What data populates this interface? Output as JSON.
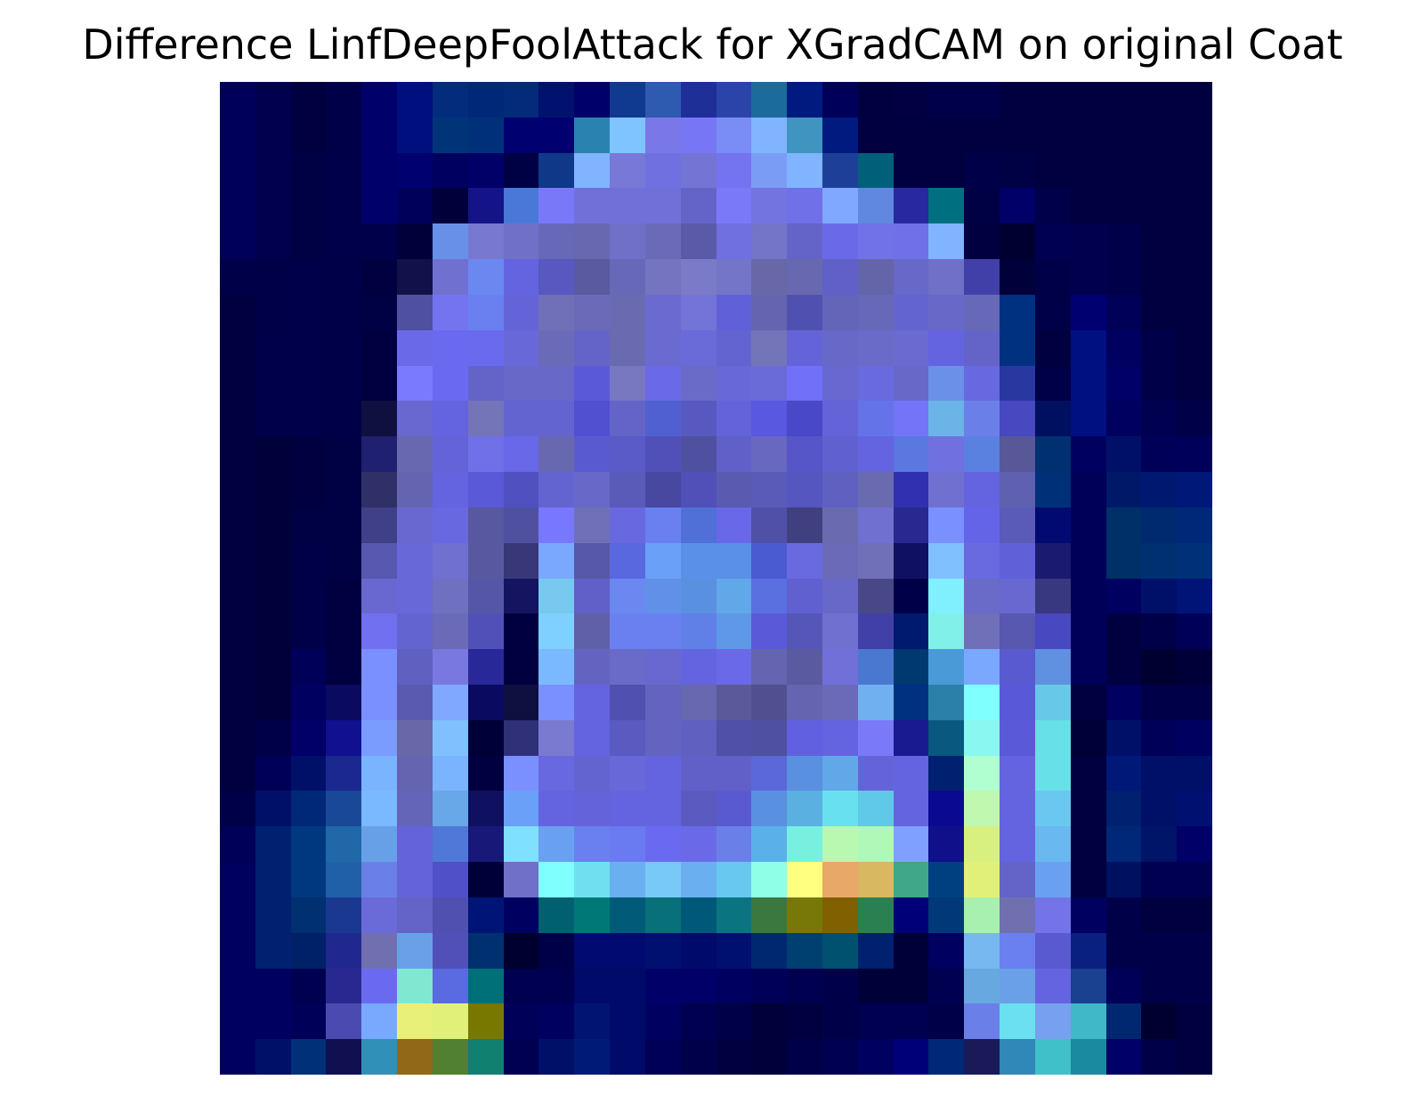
{
  "figure": {
    "title": "Difference LinfDeepFoolAttack for XGradCAM on original Coat"
  },
  "heatmap": {
    "rows": 28,
    "cols": 28,
    "colormap": "jet-overlay-on-grayscale",
    "pixels": [
      [
        "#00005a",
        "#00004f",
        "#000040",
        "#000048",
        "#00006a",
        "#000f7e",
        "#042c7d",
        "#002878",
        "#042a7a",
        "#00126e",
        "#00006a",
        "#0f3a8f",
        "#2e5ab0",
        "#1e2f98",
        "#2a44aa",
        "#1b6b9c",
        "#001a80",
        "#00005a",
        "#000040",
        "#000042",
        "#00004a",
        "#00004a",
        "#000040",
        "#000040",
        "#000040",
        "#000040",
        "#000040",
        "#000040"
      ],
      [
        "#00005a",
        "#00004f",
        "#000040",
        "#000048",
        "#00006a",
        "#000f7e",
        "#003479",
        "#00307a",
        "#000070",
        "#000070",
        "#2a82b0",
        "#80c4ff",
        "#7a78e8",
        "#7777f5",
        "#7a8cf5",
        "#80b4ff",
        "#3f95c0",
        "#001a80",
        "#000040",
        "#000040",
        "#000040",
        "#000040",
        "#000040",
        "#000040",
        "#000040",
        "#000040",
        "#000040",
        "#000040"
      ],
      [
        "#00005a",
        "#00004f",
        "#000045",
        "#00004a",
        "#00006a",
        "#000070",
        "#000060",
        "#000068",
        "#000045",
        "#103888",
        "#80b4ff",
        "#7878d8",
        "#7070e0",
        "#7474d5",
        "#7474f0",
        "#7a9cf5",
        "#80b4ff",
        "#1e3f98",
        "#00607a",
        "#000040",
        "#000040",
        "#000048",
        "#000045",
        "#000040",
        "#000040",
        "#000040",
        "#000040",
        "#000040"
      ],
      [
        "#00005a",
        "#00004f",
        "#000045",
        "#00004a",
        "#00006a",
        "#00005a",
        "#00003a",
        "#141488",
        "#4a78d8",
        "#7878f8",
        "#7070d8",
        "#7070d8",
        "#7070d8",
        "#6464c8",
        "#7a7af8",
        "#7474e0",
        "#7070e8",
        "#80a8ff",
        "#6088e0",
        "#2828a0",
        "#007080",
        "#000045",
        "#000068",
        "#00004a",
        "#000040",
        "#000040",
        "#000040",
        "#000040"
      ],
      [
        "#00005a",
        "#00004f",
        "#000045",
        "#00004a",
        "#00004a",
        "#00003a",
        "#6890e8",
        "#7878d0",
        "#7070c8",
        "#6868b8",
        "#6868b0",
        "#7070c8",
        "#6a6ab8",
        "#5a5aa8",
        "#7070e0",
        "#7474c8",
        "#6464c8",
        "#6a6ae8",
        "#7272e8",
        "#7070e8",
        "#80b4ff",
        "#000040",
        "#000030",
        "#000050",
        "#00004f",
        "#00004a",
        "#000040",
        "#000040"
      ],
      [
        "#000048",
        "#000048",
        "#00004a",
        "#000048",
        "#000040",
        "#12124a",
        "#7070d0",
        "#6a88f0",
        "#6464e0",
        "#5858c0",
        "#5a5aa0",
        "#6868b8",
        "#7474c0",
        "#7a7ac8",
        "#7474c8",
        "#6868a8",
        "#6868b0",
        "#6060c8",
        "#6464a8",
        "#6868c8",
        "#7070c8",
        "#4040a8",
        "#00003a",
        "#000048",
        "#00004f",
        "#00004a",
        "#000040",
        "#000040"
      ],
      [
        "#000040",
        "#000048",
        "#00004a",
        "#000048",
        "#000045",
        "#5050a0",
        "#7474f0",
        "#6a80f0",
        "#6464d8",
        "#7070b8",
        "#6a6ab8",
        "#6a6ab0",
        "#6a6ad0",
        "#7474d8",
        "#6060d8",
        "#6464b0",
        "#5050b0",
        "#6464b8",
        "#6868b8",
        "#6464d0",
        "#6868c8",
        "#6868b8",
        "#003080",
        "#000048",
        "#000070",
        "#000058",
        "#000040",
        "#000040"
      ],
      [
        "#000040",
        "#00004a",
        "#00004a",
        "#000048",
        "#000040",
        "#6a6ae8",
        "#6a6af0",
        "#6a6aee",
        "#6868d8",
        "#6a6ab8",
        "#6464c8",
        "#6a6ab0",
        "#6a6ad0",
        "#6a6ad8",
        "#6464d0",
        "#7474b8",
        "#6464d8",
        "#6868c8",
        "#6a6ac8",
        "#6a6ad0",
        "#6464e0",
        "#6464c8",
        "#003080",
        "#000040",
        "#001080",
        "#000060",
        "#000048",
        "#000040"
      ],
      [
        "#000040",
        "#00004a",
        "#00004a",
        "#000048",
        "#000040",
        "#7a7aff",
        "#6a6af0",
        "#6464c8",
        "#6868c8",
        "#6868c8",
        "#5a5ad8",
        "#7878c0",
        "#6a6ae8",
        "#6a6ac8",
        "#6868d8",
        "#6a6ad8",
        "#7070f8",
        "#6868d0",
        "#6a6ae0",
        "#6868c8",
        "#6a90e8",
        "#6868e0",
        "#2838a0",
        "#000048",
        "#001080",
        "#000068",
        "#000048",
        "#000040"
      ],
      [
        "#000040",
        "#00004a",
        "#00004a",
        "#000048",
        "#101040",
        "#6868d0",
        "#6464e0",
        "#7474b8",
        "#6464d0",
        "#6464d0",
        "#5050d0",
        "#6464c8",
        "#5060d0",
        "#5858c0",
        "#6464d8",
        "#5858e0",
        "#4848c8",
        "#6464d8",
        "#6474e8",
        "#7474f8",
        "#6ab4e8",
        "#6a80e8",
        "#4848c0",
        "#001060",
        "#001080",
        "#000060",
        "#000050",
        "#000048"
      ],
      [
        "#000040",
        "#00003a",
        "#000040",
        "#000045",
        "#202070",
        "#6868b0",
        "#6464d8",
        "#7070e8",
        "#6868e8",
        "#6868b0",
        "#5a5ad0",
        "#5a5ac8",
        "#5050b8",
        "#5050a0",
        "#6060c8",
        "#6868c0",
        "#5656c8",
        "#6060d0",
        "#6464e0",
        "#5a78e0",
        "#7070e0",
        "#5a80e0",
        "#585898",
        "#003070",
        "#000060",
        "#001068",
        "#000058",
        "#00005a"
      ],
      [
        "#000040",
        "#00003a",
        "#000040",
        "#000045",
        "#303068",
        "#6464b0",
        "#6464e0",
        "#5a5ad8",
        "#5050c0",
        "#6464d0",
        "#6868c8",
        "#5a5ab8",
        "#4848a0",
        "#5050b8",
        "#5a5ab0",
        "#5a5ab8",
        "#5656c0",
        "#6060c0",
        "#6a6ab0",
        "#3030b0",
        "#7070d0",
        "#6464e0",
        "#6060b0",
        "#003078",
        "#000058",
        "#001868",
        "#001870",
        "#001878"
      ],
      [
        "#000040",
        "#00003a",
        "#000045",
        "#000045",
        "#404088",
        "#6868d0",
        "#6868e0",
        "#5858a0",
        "#5050a0",
        "#7878ff",
        "#7070b8",
        "#6868e0",
        "#6a80f0",
        "#5070d8",
        "#6868e8",
        "#5050a8",
        "#404080",
        "#6a6ab0",
        "#7070d0",
        "#282890",
        "#7a90ff",
        "#6464e8",
        "#5a5ab8",
        "#000a70",
        "#000058",
        "#003068",
        "#002a70",
        "#002878"
      ],
      [
        "#000040",
        "#00003a",
        "#000048",
        "#000045",
        "#5858b0",
        "#6868d8",
        "#7070d0",
        "#5858a0",
        "#383878",
        "#7aa8ff",
        "#5858a8",
        "#5a68e0",
        "#6aa0f8",
        "#5a90e8",
        "#5a90e8",
        "#4a5ad0",
        "#6a6ae0",
        "#6a6ab8",
        "#7070b8",
        "#101060",
        "#80c0ff",
        "#6a6ae0",
        "#6060d8",
        "#1a1a70",
        "#000058",
        "#003068",
        "#003070",
        "#003078"
      ],
      [
        "#000040",
        "#00003a",
        "#000048",
        "#000040",
        "#6868d0",
        "#6868d8",
        "#7070c0",
        "#5656a8",
        "#141460",
        "#78c8f0",
        "#6060c8",
        "#6a88f0",
        "#6090e8",
        "#5a90e0",
        "#60a8e8",
        "#5a70e0",
        "#6060d0",
        "#6868c8",
        "#484888",
        "#000048",
        "#80f0ff",
        "#6a6ac8",
        "#6868d0",
        "#383880",
        "#000058",
        "#000060",
        "#001068",
        "#001478"
      ],
      [
        "#000040",
        "#00003a",
        "#000048",
        "#000040",
        "#7070f0",
        "#6464d0",
        "#6a6ab8",
        "#5050b8",
        "#000040",
        "#80d0ff",
        "#6060a8",
        "#6a80f0",
        "#6a80f0",
        "#6080e8",
        "#6098e8",
        "#5a5ad8",
        "#5656b8",
        "#7070d0",
        "#4040a8",
        "#001a70",
        "#80f0e8",
        "#7070b8",
        "#5858b0",
        "#4848c0",
        "#000058",
        "#000040",
        "#000048",
        "#000058"
      ],
      [
        "#000040",
        "#00003a",
        "#000058",
        "#000040",
        "#7a90ff",
        "#6060c0",
        "#7878e0",
        "#282898",
        "#000040",
        "#7ab8ff",
        "#6464c0",
        "#6a6ac8",
        "#6868d0",
        "#6464e0",
        "#6a6ae8",
        "#6464b0",
        "#5a5aa0",
        "#7070d8",
        "#4a78d0",
        "#003870",
        "#4a9ad8",
        "#7aa8ff",
        "#5a5ad0",
        "#6090e0",
        "#000058",
        "#000040",
        "#000030",
        "#000038"
      ],
      [
        "#000040",
        "#00003a",
        "#000060",
        "#0a0a60",
        "#7a90ff",
        "#5a5ab0",
        "#80a8ff",
        "#0a0a60",
        "#101040",
        "#7a90ff",
        "#6464e0",
        "#5050b0",
        "#6464c0",
        "#6868b0",
        "#5a5a98",
        "#505090",
        "#6464b0",
        "#6a6ab8",
        "#70b0f0",
        "#003080",
        "#2a80a8",
        "#80ffff",
        "#5858d8",
        "#68c8e8",
        "#000040",
        "#000060",
        "#000048",
        "#000048"
      ],
      [
        "#000040",
        "#000048",
        "#000068",
        "#101090",
        "#7a9cff",
        "#6868a8",
        "#80c0ff",
        "#000038",
        "#303078",
        "#7a7ad0",
        "#6464e0",
        "#5a5ac0",
        "#6464c0",
        "#6060c0",
        "#5050a8",
        "#5050a0",
        "#6060e0",
        "#6464e0",
        "#7a7af8",
        "#1a1a90",
        "#085880",
        "#8af8f0",
        "#5a5ad8",
        "#68e0e8",
        "#000038",
        "#001068",
        "#000058",
        "#000060"
      ],
      [
        "#000040",
        "#000058",
        "#001068",
        "#1a2890",
        "#7ab4ff",
        "#6464b0",
        "#7ab4ff",
        "#000040",
        "#7a90ff",
        "#6868e0",
        "#6464d0",
        "#6868d8",
        "#6464e0",
        "#6060c8",
        "#6060c8",
        "#5a68d8",
        "#5a90e0",
        "#60a8e8",
        "#6464d8",
        "#6464e0",
        "#002070",
        "#b0ffd0",
        "#6464e0",
        "#68e0e8",
        "#000040",
        "#001878",
        "#001068",
        "#001068"
      ],
      [
        "#000048",
        "#001068",
        "#002878",
        "#1a4898",
        "#7ab8ff",
        "#6464b8",
        "#68a8e8",
        "#101060",
        "#6aa0f8",
        "#6464e0",
        "#6464d8",
        "#6464e0",
        "#6464e0",
        "#5a5ac0",
        "#5a5ad0",
        "#5a90e0",
        "#5ab0e0",
        "#68e0f0",
        "#60c8e8",
        "#6464e0",
        "#0a0a90",
        "#c0f8b0",
        "#6464e0",
        "#6ac8f0",
        "#000040",
        "#002070",
        "#001068",
        "#001070"
      ],
      [
        "#000058",
        "#002070",
        "#003880",
        "#2068a8",
        "#68a0e8",
        "#6464d8",
        "#5078d8",
        "#181878",
        "#80e0ff",
        "#6aa0f0",
        "#6a80f0",
        "#6a7af0",
        "#6a6af0",
        "#6a6ae8",
        "#6a80e8",
        "#5ab0e8",
        "#78f0e0",
        "#b8f8b0",
        "#b0f8b8",
        "#80a0ff",
        "#10108a",
        "#d8f080",
        "#6464e0",
        "#6ab8f0",
        "#000040",
        "#002878",
        "#001468",
        "#000068"
      ],
      [
        "#000060",
        "#002070",
        "#003880",
        "#2060a8",
        "#6a80e8",
        "#6464d8",
        "#5050c8",
        "#000038",
        "#7070c8",
        "#80ffff",
        "#70e0f0",
        "#6ab0f0",
        "#78c8f8",
        "#6ab0f0",
        "#68c8f0",
        "#90ffe8",
        "#ffff80",
        "#e8a868",
        "#d8b860",
        "#40a888",
        "#004080",
        "#e0f078",
        "#6464c8",
        "#6aa0f0",
        "#000040",
        "#001060",
        "#000050",
        "#000050"
      ],
      [
        "#000060",
        "#002070",
        "#003070",
        "#1a3890",
        "#6a6ad8",
        "#6464c8",
        "#5050b0",
        "#001478",
        "#000060",
        "#006070",
        "#007878",
        "#005a78",
        "#087078",
        "#005878",
        "#0a7480",
        "#3a7840",
        "#787808",
        "#806000",
        "#2a8050",
        "#000078",
        "#003878",
        "#a8f0b0",
        "#7070b0",
        "#7474e8",
        "#000060",
        "#000048",
        "#000040",
        "#000040"
      ],
      [
        "#000060",
        "#002070",
        "#002068",
        "#202890",
        "#7070b0",
        "#6aa0e8",
        "#5050b8",
        "#003070",
        "#000030",
        "#000048",
        "#000a70",
        "#000a70",
        "#001070",
        "#000a6a",
        "#001070",
        "#002870",
        "#004070",
        "#005070",
        "#002070",
        "#000038",
        "#000060",
        "#78b8f0",
        "#6a80f0",
        "#5a5ad0",
        "#0a2080",
        "#000048",
        "#000048",
        "#000048"
      ],
      [
        "#000060",
        "#000060",
        "#000050",
        "#282890",
        "#6a6af0",
        "#80e8d0",
        "#5a6ae0",
        "#007078",
        "#000050",
        "#000050",
        "#000a68",
        "#000a68",
        "#000068",
        "#000068",
        "#000060",
        "#000058",
        "#000050",
        "#00004a",
        "#000038",
        "#000038",
        "#000050",
        "#68a8e0",
        "#6aa0e8",
        "#6464e0",
        "#1a4090",
        "#000058",
        "#000048",
        "#000048"
      ],
      [
        "#000060",
        "#000060",
        "#000058",
        "#4a4ab0",
        "#78a8ff",
        "#e8f078",
        "#e0f078",
        "#787800",
        "#000058",
        "#000060",
        "#001470",
        "#000a68",
        "#000060",
        "#000050",
        "#000048",
        "#00003a",
        "#000040",
        "#000048",
        "#000050",
        "#000050",
        "#000048",
        "#6a80e8",
        "#6ae0f0",
        "#78a0f0",
        "#40b8c8",
        "#002870",
        "#000030",
        "#000040"
      ],
      [
        "#000060",
        "#001068",
        "#003078",
        "#101050",
        "#3090b8",
        "#906818",
        "#508030",
        "#108070",
        "#000050",
        "#001068",
        "#001a78",
        "#000a68",
        "#000058",
        "#00004a",
        "#000040",
        "#00003a",
        "#000048",
        "#000050",
        "#000060",
        "#000078",
        "#002878",
        "#1a1a58",
        "#3088b8",
        "#40c0c8",
        "#1a8aa0",
        "#000068",
        "#000048",
        "#000040"
      ]
    ]
  }
}
